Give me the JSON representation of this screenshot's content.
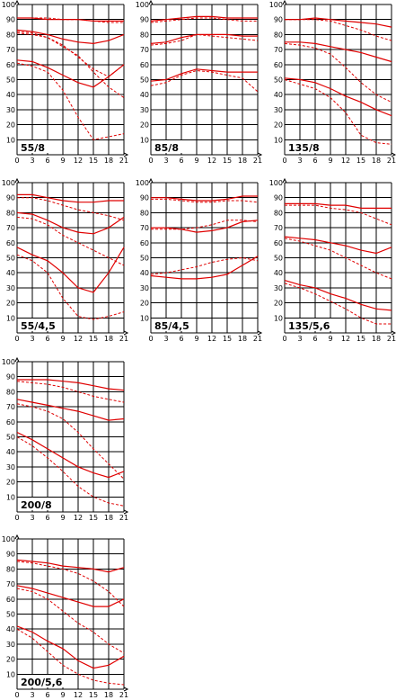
{
  "chart_data": [
    {
      "type": "line",
      "label": "55/8",
      "x": [
        0,
        3,
        6,
        9,
        12,
        15,
        18,
        21
      ],
      "ylim": [
        0,
        100
      ],
      "series": [
        {
          "style": "solid",
          "values": [
            91,
            91,
            90,
            90,
            90,
            89,
            89,
            89
          ]
        },
        {
          "style": "dashed",
          "values": [
            91,
            91,
            91,
            90,
            90,
            89,
            88,
            88
          ]
        },
        {
          "style": "solid",
          "values": [
            83,
            82,
            80,
            77,
            75,
            74,
            76,
            80
          ]
        },
        {
          "style": "dashed",
          "values": [
            82,
            81,
            78,
            73,
            65,
            57,
            52,
            60
          ]
        },
        {
          "style": "solid",
          "values": [
            63,
            62,
            58,
            53,
            48,
            45,
            52,
            60
          ]
        },
        {
          "style": "dashed",
          "values": [
            61,
            59,
            55,
            43,
            25,
            10,
            12,
            14
          ]
        },
        {
          "style": "dashed",
          "values": [
            81,
            80,
            78,
            72,
            66,
            55,
            45,
            38
          ]
        }
      ]
    },
    {
      "type": "line",
      "label": "85/8",
      "x": [
        0,
        3,
        6,
        9,
        12,
        15,
        18,
        21
      ],
      "ylim": [
        0,
        100
      ],
      "series": [
        {
          "style": "solid",
          "values": [
            89,
            90,
            91,
            92,
            92,
            91,
            91,
            91
          ]
        },
        {
          "style": "dashed",
          "values": [
            88,
            89,
            90,
            91,
            91,
            90,
            89,
            89
          ]
        },
        {
          "style": "solid",
          "values": [
            74,
            75,
            78,
            80,
            80,
            80,
            79,
            79
          ]
        },
        {
          "style": "dashed",
          "values": [
            73,
            74,
            76,
            80,
            79,
            78,
            77,
            76
          ]
        },
        {
          "style": "solid",
          "values": [
            49,
            50,
            54,
            57,
            56,
            55,
            55,
            55
          ]
        },
        {
          "style": "dashed",
          "values": [
            46,
            48,
            53,
            56,
            55,
            53,
            51,
            42
          ]
        }
      ]
    },
    {
      "type": "line",
      "label": "135/8",
      "x": [
        0,
        3,
        6,
        9,
        12,
        15,
        18,
        21
      ],
      "ylim": [
        0,
        100
      ],
      "series": [
        {
          "style": "solid",
          "values": [
            90,
            90,
            91,
            90,
            89,
            88,
            87,
            85
          ]
        },
        {
          "style": "dashed",
          "values": [
            90,
            90,
            90,
            89,
            86,
            83,
            79,
            76
          ]
        },
        {
          "style": "solid",
          "values": [
            75,
            75,
            74,
            72,
            70,
            68,
            65,
            62
          ]
        },
        {
          "style": "dashed",
          "values": [
            74,
            73,
            71,
            67,
            58,
            48,
            40,
            35
          ]
        },
        {
          "style": "solid",
          "values": [
            51,
            50,
            48,
            44,
            39,
            35,
            30,
            26
          ]
        },
        {
          "style": "dashed",
          "values": [
            50,
            47,
            44,
            38,
            28,
            13,
            8,
            7
          ]
        }
      ]
    },
    {
      "type": "line",
      "label": "55/4,5",
      "x": [
        0,
        3,
        6,
        9,
        12,
        15,
        18,
        21
      ],
      "ylim": [
        0,
        100
      ],
      "series": [
        {
          "style": "solid",
          "values": [
            92,
            92,
            90,
            88,
            87,
            87,
            88,
            88
          ]
        },
        {
          "style": "dashed",
          "values": [
            90,
            90,
            88,
            85,
            82,
            80,
            78,
            75
          ]
        },
        {
          "style": "solid",
          "values": [
            80,
            79,
            75,
            70,
            67,
            66,
            70,
            77
          ]
        },
        {
          "style": "dashed",
          "values": [
            77,
            76,
            72,
            65,
            60,
            55,
            50,
            45
          ]
        },
        {
          "style": "solid",
          "values": [
            57,
            52,
            48,
            40,
            30,
            27,
            40,
            57
          ]
        },
        {
          "style": "dashed",
          "values": [
            52,
            48,
            40,
            23,
            11,
            9,
            11,
            14
          ]
        }
      ]
    },
    {
      "type": "line",
      "label": "85/4,5",
      "x": [
        0,
        3,
        6,
        9,
        12,
        15,
        18,
        21
      ],
      "ylim": [
        0,
        100
      ],
      "series": [
        {
          "style": "solid",
          "values": [
            90,
            90,
            89,
            88,
            88,
            89,
            91,
            91
          ]
        },
        {
          "style": "dashed",
          "values": [
            89,
            89,
            88,
            87,
            87,
            88,
            88,
            87
          ]
        },
        {
          "style": "solid",
          "values": [
            70,
            70,
            69,
            67,
            68,
            70,
            74,
            75
          ]
        },
        {
          "style": "dashed",
          "values": [
            69,
            69,
            69,
            70,
            72,
            75,
            75,
            74
          ]
        },
        {
          "style": "solid",
          "values": [
            38,
            37,
            36,
            36,
            37,
            39,
            45,
            51
          ]
        },
        {
          "style": "dashed",
          "values": [
            39,
            40,
            42,
            44,
            47,
            49,
            50,
            48
          ]
        }
      ]
    },
    {
      "type": "line",
      "label": "135/5,6",
      "x": [
        0,
        3,
        6,
        9,
        12,
        15,
        18,
        21
      ],
      "ylim": [
        0,
        100
      ],
      "series": [
        {
          "style": "solid",
          "values": [
            86,
            86,
            86,
            85,
            85,
            83,
            83,
            83
          ]
        },
        {
          "style": "dashed",
          "values": [
            85,
            85,
            85,
            83,
            82,
            80,
            76,
            72
          ]
        },
        {
          "style": "solid",
          "values": [
            64,
            63,
            62,
            60,
            58,
            55,
            53,
            57
          ]
        },
        {
          "style": "dashed",
          "values": [
            63,
            61,
            58,
            55,
            50,
            45,
            40,
            36
          ]
        },
        {
          "style": "solid",
          "values": [
            35,
            32,
            30,
            26,
            23,
            19,
            16,
            15
          ]
        },
        {
          "style": "dashed",
          "values": [
            33,
            30,
            26,
            21,
            16,
            10,
            6,
            6
          ]
        }
      ]
    },
    {
      "type": "line",
      "label": "200/8",
      "x": [
        0,
        3,
        6,
        9,
        12,
        15,
        18,
        21
      ],
      "ylim": [
        0,
        100
      ],
      "series": [
        {
          "style": "solid",
          "values": [
            88,
            88,
            88,
            87,
            86,
            84,
            82,
            81
          ]
        },
        {
          "style": "dashed",
          "values": [
            87,
            86,
            85,
            83,
            80,
            77,
            75,
            73
          ]
        },
        {
          "style": "solid",
          "values": [
            75,
            73,
            71,
            69,
            67,
            64,
            61,
            62
          ]
        },
        {
          "style": "dashed",
          "values": [
            72,
            70,
            67,
            62,
            53,
            42,
            32,
            22
          ]
        },
        {
          "style": "solid",
          "values": [
            53,
            48,
            42,
            36,
            30,
            26,
            23,
            27
          ]
        },
        {
          "style": "dashed",
          "values": [
            50,
            44,
            36,
            27,
            17,
            10,
            6,
            4
          ]
        }
      ]
    },
    {
      "type": "line",
      "label": "200/5,6",
      "x": [
        0,
        3,
        6,
        9,
        12,
        15,
        18,
        21
      ],
      "ylim": [
        0,
        100
      ],
      "series": [
        {
          "style": "solid",
          "values": [
            86,
            85,
            84,
            82,
            81,
            80,
            78,
            81
          ]
        },
        {
          "style": "dashed",
          "values": [
            85,
            84,
            82,
            80,
            77,
            72,
            65,
            55
          ]
        },
        {
          "style": "solid",
          "values": [
            69,
            67,
            64,
            61,
            58,
            55,
            55,
            60
          ]
        },
        {
          "style": "dashed",
          "values": [
            67,
            65,
            60,
            52,
            44,
            38,
            30,
            24
          ]
        },
        {
          "style": "solid",
          "values": [
            42,
            38,
            32,
            27,
            19,
            14,
            16,
            22
          ]
        },
        {
          "style": "dashed",
          "values": [
            40,
            34,
            25,
            16,
            10,
            6,
            4,
            3
          ]
        }
      ]
    }
  ],
  "axis": {
    "x_ticks": [
      0,
      3,
      6,
      9,
      12,
      15,
      18,
      21
    ],
    "y_ticks": [
      10,
      20,
      30,
      40,
      50,
      60,
      70,
      80,
      90,
      100
    ]
  },
  "colors": {
    "series": "#e00000",
    "grid": "#000000",
    "background": "#ffffff"
  }
}
